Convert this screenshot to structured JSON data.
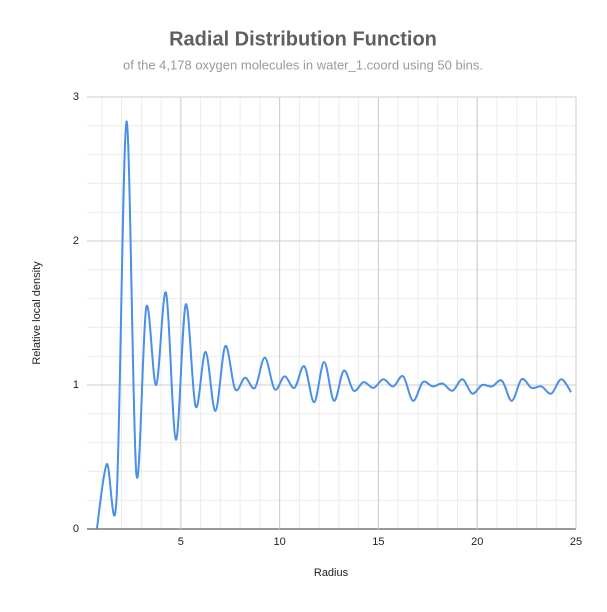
{
  "chart_data": {
    "type": "line",
    "title": "Radial Distribution Function",
    "subtitle": "of the 4,178 oxygen molecules in water_1.coord using 50 bins.",
    "x_label": "Radius",
    "y_label": "Relative local density",
    "x": [
      0.75,
      1.25,
      1.75,
      2.25,
      2.75,
      3.25,
      3.75,
      4.25,
      4.75,
      5.25,
      5.75,
      6.25,
      6.75,
      7.25,
      7.75,
      8.25,
      8.75,
      9.25,
      9.75,
      10.25,
      10.75,
      11.25,
      11.75,
      12.25,
      12.75,
      13.25,
      13.75,
      14.25,
      14.75,
      15.25,
      15.75,
      16.25,
      16.75,
      17.25,
      17.75,
      18.25,
      18.75,
      19.25,
      19.75,
      20.25,
      20.75,
      21.25,
      21.75,
      22.25,
      22.75,
      23.25,
      23.75,
      24.25,
      24.75
    ],
    "series": [
      {
        "name": "Relative local density",
        "color": "#4a8fe8",
        "values": [
          0,
          0.45,
          0.22,
          2.83,
          0.38,
          1.54,
          1.0,
          1.64,
          0.62,
          1.56,
          0.85,
          1.23,
          0.82,
          1.27,
          0.97,
          1.05,
          0.98,
          1.19,
          0.97,
          1.06,
          0.98,
          1.13,
          0.88,
          1.16,
          0.89,
          1.1,
          0.96,
          1.02,
          0.98,
          1.04,
          0.99,
          1.06,
          0.89,
          1.02,
          0.99,
          1.01,
          0.96,
          1.04,
          0.94,
          1.0,
          0.99,
          1.03,
          0.89,
          1.04,
          0.98,
          0.99,
          0.94,
          1.04,
          0.95
        ]
      }
    ],
    "xlim": [
      0.25,
      25
    ],
    "ylim": [
      0,
      3
    ],
    "xticks": [
      5,
      10,
      15,
      20,
      25
    ],
    "yticks": [
      0,
      1,
      2,
      3
    ],
    "grid": true,
    "minor_grid": {
      "x_step": 1,
      "y_step": 0.2
    }
  }
}
